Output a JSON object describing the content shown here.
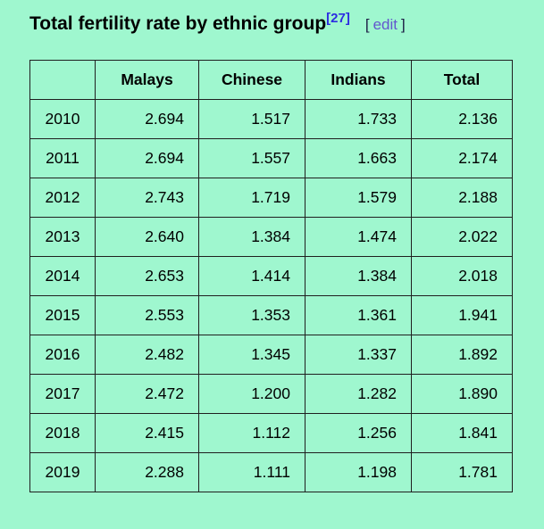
{
  "colors": {
    "background": "#9FF7CF",
    "table_border": "#1F1F1F",
    "text": "#000000",
    "citation_link": "#2D2DE1",
    "edit_link": "#6356CE",
    "edit_brackets": "#1C1C44"
  },
  "header": {
    "title": "Total fertility rate by ethnic group",
    "citation": "[27]",
    "edit_open_bracket": "[",
    "edit_label": "edit",
    "edit_close_bracket": "]"
  },
  "table": {
    "columns": [
      "",
      "Malays",
      "Chinese",
      "Indians",
      "Total"
    ],
    "rows": [
      {
        "year": "2010",
        "values": [
          "2.694",
          "1.517",
          "1.733",
          "2.136"
        ]
      },
      {
        "year": "2011",
        "values": [
          "2.694",
          "1.557",
          "1.663",
          "2.174"
        ]
      },
      {
        "year": "2012",
        "values": [
          "2.743",
          "1.719",
          "1.579",
          "2.188"
        ]
      },
      {
        "year": "2013",
        "values": [
          "2.640",
          "1.384",
          "1.474",
          "2.022"
        ]
      },
      {
        "year": "2014",
        "values": [
          "2.653",
          "1.414",
          "1.384",
          "2.018"
        ]
      },
      {
        "year": "2015",
        "values": [
          "2.553",
          "1.353",
          "1.361",
          "1.941"
        ]
      },
      {
        "year": "2016",
        "values": [
          "2.482",
          "1.345",
          "1.337",
          "1.892"
        ]
      },
      {
        "year": "2017",
        "values": [
          "2.472",
          "1.200",
          "1.282",
          "1.890"
        ]
      },
      {
        "year": "2018",
        "values": [
          "2.415",
          "1.112",
          "1.256",
          "1.841"
        ]
      },
      {
        "year": "2019",
        "values": [
          "2.288",
          "1.111",
          "1.198",
          "1.781"
        ]
      }
    ]
  }
}
